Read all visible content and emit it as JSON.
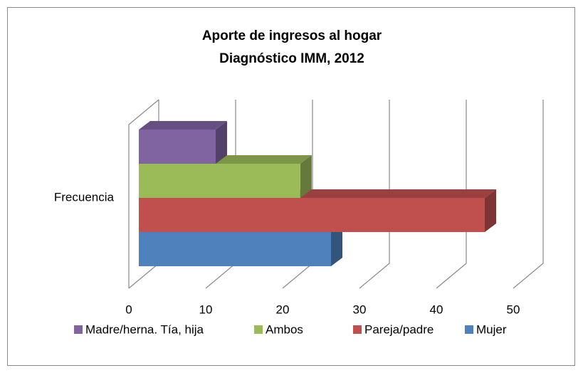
{
  "chart_data": {
    "type": "bar3d_horizontal",
    "title": "Aporte de ingresos al hogar",
    "subtitle": "Diagnóstico IMM, 2012",
    "categories": [
      "Frecuencia"
    ],
    "series": [
      {
        "name": "Madre/herna. Tía, hija",
        "color": "#8064a2",
        "values": [
          10
        ]
      },
      {
        "name": "Ambos",
        "color": "#9bbb59",
        "values": [
          21
        ]
      },
      {
        "name": "Pareja/padre",
        "color": "#c0504d",
        "values": [
          45
        ]
      },
      {
        "name": "Mujer",
        "color": "#4f81bd",
        "values": [
          25
        ]
      }
    ],
    "xlim": [
      0,
      50
    ],
    "xticks": [
      0,
      10,
      20,
      30,
      40,
      50
    ],
    "grid": true,
    "legend": "bottom"
  }
}
